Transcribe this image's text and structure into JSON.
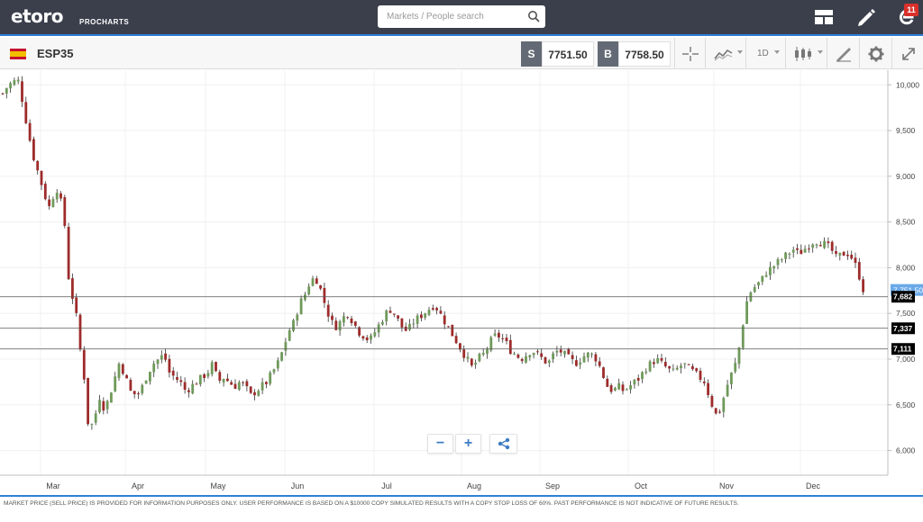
{
  "header": {
    "logo_text": "etoro",
    "logo_subtitle": "PROCHARTS",
    "search": {
      "placeholder": "Markets / People search",
      "value": ""
    },
    "notification_count": "11",
    "icons": [
      "layout-icon",
      "pencil-icon",
      "etoro-user-icon",
      "search-icon"
    ]
  },
  "toolbar": {
    "symbol": "ESP35",
    "sell_label": "S",
    "sell_price": "7751.50",
    "buy_label": "B",
    "buy_price": "7758.50",
    "timeframe": "1D",
    "icons": [
      "crosshair-icon",
      "line-chart-icon",
      "candles-icon",
      "drawing-icon",
      "gear-icon",
      "fullscreen-icon"
    ]
  },
  "chart_data": {
    "type": "candlestick",
    "instrument": "ESP35",
    "x_ticks": [
      "Mar",
      "Apr",
      "May",
      "Jun",
      "Jul",
      "Aug",
      "Sep",
      "Oct",
      "Nov",
      "Dec"
    ],
    "y_ticks": [
      "10,000",
      "9,500",
      "9,000",
      "8,500",
      "8,000",
      "7,500",
      "7,000",
      "6,500",
      "6,000"
    ],
    "ylim": [
      5730,
      10160
    ],
    "horizontal_lines": [
      {
        "label": "7,751.50",
        "value": 7751.5,
        "style": "current",
        "color": "#6aa9e8"
      },
      {
        "label": "7,682",
        "value": 7682,
        "style": "level",
        "color": "#000000"
      },
      {
        "label": "7,337",
        "value": 7337,
        "style": "level",
        "color": "#000000"
      },
      {
        "label": "7,111",
        "value": 7111,
        "style": "level",
        "color": "#000000"
      }
    ],
    "colors": {
      "up": "#6f9a5a",
      "down": "#9e2b2b",
      "wick": "#333333",
      "grid": "#f0f0f0"
    },
    "month_boundaries": [
      45,
      139,
      228,
      316,
      415,
      512,
      599,
      697,
      792,
      888,
      965
    ],
    "anchors": [
      [
        0,
        9860
      ],
      [
        8,
        9980
      ],
      [
        14,
        10030
      ],
      [
        20,
        10050
      ],
      [
        24,
        9870
      ],
      [
        30,
        9550
      ],
      [
        36,
        9250
      ],
      [
        42,
        9050
      ],
      [
        48,
        8850
      ],
      [
        54,
        8650
      ],
      [
        58,
        8750
      ],
      [
        62,
        8900
      ],
      [
        68,
        8700
      ],
      [
        72,
        8450
      ],
      [
        76,
        7900
      ],
      [
        82,
        7600
      ],
      [
        86,
        7400
      ],
      [
        90,
        7000
      ],
      [
        95,
        6700
      ],
      [
        98,
        6250
      ],
      [
        104,
        6300
      ],
      [
        110,
        6600
      ],
      [
        116,
        6450
      ],
      [
        120,
        6550
      ],
      [
        126,
        6750
      ],
      [
        132,
        6950
      ],
      [
        138,
        6850
      ],
      [
        144,
        6650
      ],
      [
        152,
        6600
      ],
      [
        158,
        6700
      ],
      [
        164,
        6850
      ],
      [
        170,
        6950
      ],
      [
        176,
        7000
      ],
      [
        182,
        7050
      ],
      [
        188,
        6850
      ],
      [
        194,
        6800
      ],
      [
        200,
        6750
      ],
      [
        206,
        6650
      ],
      [
        212,
        6700
      ],
      [
        218,
        6750
      ],
      [
        224,
        6800
      ],
      [
        230,
        6850
      ],
      [
        236,
        6950
      ],
      [
        242,
        6750
      ],
      [
        248,
        6800
      ],
      [
        254,
        6750
      ],
      [
        260,
        6700
      ],
      [
        266,
        6750
      ],
      [
        272,
        6700
      ],
      [
        278,
        6600
      ],
      [
        284,
        6650
      ],
      [
        290,
        6700
      ],
      [
        296,
        6750
      ],
      [
        302,
        6850
      ],
      [
        308,
        6950
      ],
      [
        314,
        7100
      ],
      [
        320,
        7300
      ],
      [
        326,
        7400
      ],
      [
        332,
        7600
      ],
      [
        338,
        7700
      ],
      [
        344,
        7850
      ],
      [
        350,
        7900
      ],
      [
        356,
        7750
      ],
      [
        362,
        7550
      ],
      [
        368,
        7400
      ],
      [
        374,
        7350
      ],
      [
        380,
        7450
      ],
      [
        386,
        7500
      ],
      [
        392,
        7400
      ],
      [
        398,
        7300
      ],
      [
        404,
        7250
      ],
      [
        410,
        7200
      ],
      [
        416,
        7300
      ],
      [
        422,
        7400
      ],
      [
        428,
        7500
      ],
      [
        434,
        7550
      ],
      [
        440,
        7450
      ],
      [
        446,
        7350
      ],
      [
        452,
        7300
      ],
      [
        458,
        7400
      ],
      [
        464,
        7450
      ],
      [
        470,
        7500
      ],
      [
        476,
        7550
      ],
      [
        482,
        7600
      ],
      [
        488,
        7500
      ],
      [
        494,
        7400
      ],
      [
        500,
        7300
      ],
      [
        506,
        7200
      ],
      [
        512,
        7100
      ],
      [
        518,
        7000
      ],
      [
        524,
        6900
      ],
      [
        530,
        7000
      ],
      [
        536,
        7050
      ],
      [
        542,
        7150
      ],
      [
        548,
        7250
      ],
      [
        554,
        7250
      ],
      [
        560,
        7200
      ],
      [
        566,
        7100
      ],
      [
        572,
        7050
      ],
      [
        578,
        7000
      ],
      [
        584,
        7050
      ],
      [
        590,
        7100
      ],
      [
        596,
        7050
      ],
      [
        602,
        7000
      ],
      [
        608,
        6950
      ],
      [
        614,
        7050
      ],
      [
        620,
        7100
      ],
      [
        626,
        7050
      ],
      [
        632,
        7000
      ],
      [
        638,
        6950
      ],
      [
        644,
        7000
      ],
      [
        650,
        7050
      ],
      [
        656,
        7050
      ],
      [
        662,
        7000
      ],
      [
        668,
        6850
      ],
      [
        674,
        6700
      ],
      [
        680,
        6650
      ],
      [
        686,
        6700
      ],
      [
        692,
        6650
      ],
      [
        698,
        6700
      ],
      [
        704,
        6750
      ],
      [
        710,
        6800
      ],
      [
        716,
        6900
      ],
      [
        722,
        6950
      ],
      [
        728,
        7000
      ],
      [
        734,
        6950
      ],
      [
        740,
        6900
      ],
      [
        746,
        6850
      ],
      [
        752,
        6900
      ],
      [
        758,
        6950
      ],
      [
        764,
        6900
      ],
      [
        770,
        6850
      ],
      [
        776,
        6800
      ],
      [
        782,
        6750
      ],
      [
        788,
        6550
      ],
      [
        792,
        6450
      ],
      [
        796,
        6350
      ],
      [
        802,
        6550
      ],
      [
        808,
        6750
      ],
      [
        814,
        6900
      ],
      [
        818,
        7000
      ],
      [
        822,
        7250
      ],
      [
        826,
        7500
      ],
      [
        830,
        7700
      ],
      [
        834,
        7750
      ],
      [
        838,
        7800
      ],
      [
        844,
        7850
      ],
      [
        850,
        7950
      ],
      [
        856,
        8000
      ],
      [
        862,
        8050
      ],
      [
        868,
        8100
      ],
      [
        874,
        8150
      ],
      [
        880,
        8200
      ],
      [
        886,
        8150
      ],
      [
        892,
        8200
      ],
      [
        898,
        8250
      ],
      [
        904,
        8300
      ],
      [
        910,
        8280
      ],
      [
        916,
        8250
      ],
      [
        922,
        8200
      ],
      [
        928,
        8100
      ],
      [
        934,
        8150
      ],
      [
        940,
        8160
      ],
      [
        946,
        8100
      ],
      [
        952,
        7950
      ],
      [
        958,
        7751
      ]
    ]
  },
  "zoom": {
    "minus": "−",
    "plus": "+"
  },
  "footer": {
    "disclaimer": "MARKET PRICE (SELL PRICE) IS PROVIDED FOR INFORMATION PURPOSES ONLY. USER PERFORMANCE IS BASED ON A $10000 COPY SIMULATED RESULTS WITH A COPY STOP LOSS OF 60%. PAST PERFORMANCE IS NOT INDICATIVE OF FUTURE RESULTS."
  }
}
